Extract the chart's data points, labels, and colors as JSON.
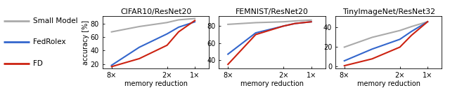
{
  "panels": [
    {
      "title": "CIFAR10/ResNet20",
      "xlabel": "memory reduction",
      "ylabel": "accuracy [%]",
      "xtick_labels": [
        "8×",
        "2×",
        "1×"
      ],
      "xtick_vals": [
        8,
        2,
        1
      ],
      "ylim": [
        13,
        92
      ],
      "yticks": [
        20,
        40,
        60,
        80
      ],
      "series": {
        "small": {
          "x": [
            8,
            4,
            2,
            1.5,
            1
          ],
          "y": [
            68,
            76,
            82,
            86,
            88
          ]
        },
        "fedrolex": {
          "x": [
            8,
            4,
            2,
            1.5,
            1
          ],
          "y": [
            18,
            45,
            65,
            75,
            83
          ]
        },
        "fd": {
          "x": [
            8,
            4,
            2,
            1.5,
            1
          ],
          "y": [
            16,
            28,
            48,
            68,
            85
          ]
        }
      }
    },
    {
      "title": "FEMNIST/ResNet20",
      "xlabel": "memory reduction",
      "ylabel": null,
      "xtick_labels": [
        "8×",
        "2×",
        "1×"
      ],
      "xtick_vals": [
        8,
        2,
        1
      ],
      "ylim": [
        30,
        92
      ],
      "yticks": [
        40,
        60,
        80
      ],
      "series": {
        "small": {
          "x": [
            8,
            4,
            2,
            1.5,
            1
          ],
          "y": [
            82,
            84,
            85,
            86,
            87
          ]
        },
        "fedrolex": {
          "x": [
            8,
            4,
            2,
            1.5,
            1
          ],
          "y": [
            47,
            72,
            80,
            83,
            85
          ]
        },
        "fd": {
          "x": [
            8,
            4,
            2,
            1.5,
            1
          ],
          "y": [
            35,
            70,
            80,
            83,
            85
          ]
        }
      }
    },
    {
      "title": "TinyImageNet/ResNet32",
      "xlabel": "memory reduction",
      "ylabel": null,
      "xtick_labels": [
        "8×",
        "2×",
        "1×"
      ],
      "xtick_vals": [
        8,
        2,
        1
      ],
      "ylim": [
        -2,
        52
      ],
      "yticks": [
        0,
        20,
        40
      ],
      "series": {
        "small": {
          "x": [
            8,
            4,
            2,
            1.5,
            1
          ],
          "y": [
            20,
            30,
            37,
            41,
            46
          ]
        },
        "fedrolex": {
          "x": [
            8,
            4,
            2,
            1.5,
            1
          ],
          "y": [
            6,
            18,
            28,
            36,
            46
          ]
        },
        "fd": {
          "x": [
            8,
            4,
            2,
            1.5,
            1
          ],
          "y": [
            1,
            8,
            20,
            32,
            46
          ]
        }
      }
    }
  ],
  "colors": {
    "small": "#aaaaaa",
    "fedrolex": "#3366cc",
    "fd": "#cc2211"
  },
  "legend": {
    "labels": [
      "Small Model",
      "FedRolex",
      "FD"
    ],
    "keys": [
      "small",
      "fedrolex",
      "fd"
    ]
  },
  "background": "#ffffff"
}
